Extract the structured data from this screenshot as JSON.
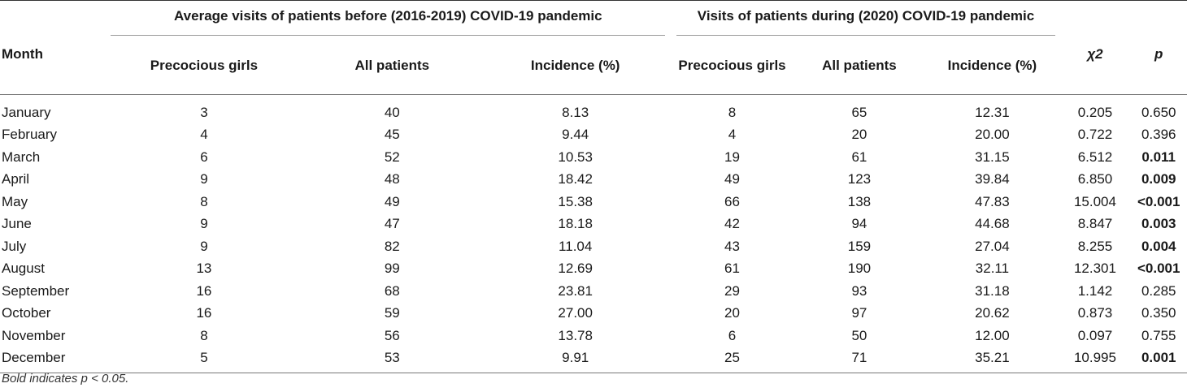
{
  "table": {
    "headers": {
      "month": "Month",
      "group_before": "Average visits of patients before (2016-2019) COVID-19 pandemic",
      "group_during": "Visits of patients during (2020) COVID-19 pandemic",
      "chi2": "χ2",
      "p": "p",
      "sub": [
        "Precocious girls",
        "All patients",
        "Incidence (%)",
        "Precocious girls",
        "All patients",
        "Incidence (%)"
      ]
    },
    "rows": [
      {
        "month": "January",
        "b_girls": "3",
        "b_all": "40",
        "b_inc": "8.13",
        "d_girls": "8",
        "d_all": "65",
        "d_inc": "12.31",
        "chi2": "0.205",
        "p": "0.650",
        "sig": false
      },
      {
        "month": "February",
        "b_girls": "4",
        "b_all": "45",
        "b_inc": "9.44",
        "d_girls": "4",
        "d_all": "20",
        "d_inc": "20.00",
        "chi2": "0.722",
        "p": "0.396",
        "sig": false
      },
      {
        "month": "March",
        "b_girls": "6",
        "b_all": "52",
        "b_inc": "10.53",
        "d_girls": "19",
        "d_all": "61",
        "d_inc": "31.15",
        "chi2": "6.512",
        "p": "0.011",
        "sig": true
      },
      {
        "month": "April",
        "b_girls": "9",
        "b_all": "48",
        "b_inc": "18.42",
        "d_girls": "49",
        "d_all": "123",
        "d_inc": "39.84",
        "chi2": "6.850",
        "p": "0.009",
        "sig": true
      },
      {
        "month": "May",
        "b_girls": "8",
        "b_all": "49",
        "b_inc": "15.38",
        "d_girls": "66",
        "d_all": "138",
        "d_inc": "47.83",
        "chi2": "15.004",
        "p": "<0.001",
        "sig": true
      },
      {
        "month": "June",
        "b_girls": "9",
        "b_all": "47",
        "b_inc": "18.18",
        "d_girls": "42",
        "d_all": "94",
        "d_inc": "44.68",
        "chi2": "8.847",
        "p": "0.003",
        "sig": true
      },
      {
        "month": "July",
        "b_girls": "9",
        "b_all": "82",
        "b_inc": "11.04",
        "d_girls": "43",
        "d_all": "159",
        "d_inc": "27.04",
        "chi2": "8.255",
        "p": "0.004",
        "sig": true
      },
      {
        "month": "August",
        "b_girls": "13",
        "b_all": "99",
        "b_inc": "12.69",
        "d_girls": "61",
        "d_all": "190",
        "d_inc": "32.11",
        "chi2": "12.301",
        "p": "<0.001",
        "sig": true
      },
      {
        "month": "September",
        "b_girls": "16",
        "b_all": "68",
        "b_inc": "23.81",
        "d_girls": "29",
        "d_all": "93",
        "d_inc": "31.18",
        "chi2": "1.142",
        "p": "0.285",
        "sig": false
      },
      {
        "month": "October",
        "b_girls": "16",
        "b_all": "59",
        "b_inc": "27.00",
        "d_girls": "20",
        "d_all": "97",
        "d_inc": "20.62",
        "chi2": "0.873",
        "p": "0.350",
        "sig": false
      },
      {
        "month": "November",
        "b_girls": "8",
        "b_all": "56",
        "b_inc": "13.78",
        "d_girls": "6",
        "d_all": "50",
        "d_inc": "12.00",
        "chi2": "0.097",
        "p": "0.755",
        "sig": false
      },
      {
        "month": "December",
        "b_girls": "5",
        "b_all": "53",
        "b_inc": "9.91",
        "d_girls": "25",
        "d_all": "71",
        "d_inc": "35.21",
        "chi2": "10.995",
        "p": "0.001",
        "sig": true
      }
    ],
    "footnote": "Bold indicates p < 0.05."
  }
}
